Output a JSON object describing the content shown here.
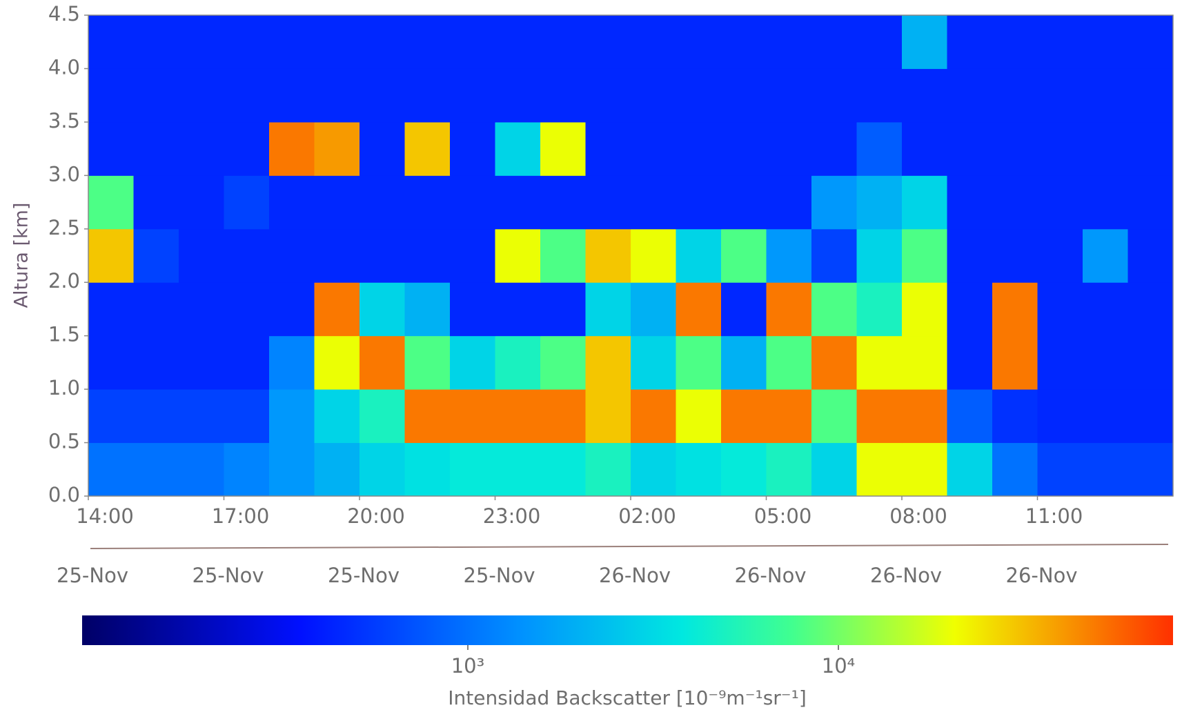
{
  "chart_data": {
    "type": "heatmap",
    "ylabel": "Altura [km]",
    "ylim": [
      0,
      4.5
    ],
    "yticks": [
      {
        "value": 0,
        "label": "0.0"
      },
      0.5,
      {
        "value": 1,
        "label": "1.0"
      },
      1.5,
      {
        "value": 2,
        "label": "2.0"
      },
      2.5,
      {
        "value": 3,
        "label": "3.0"
      },
      3.5,
      {
        "value": 4,
        "label": "4.0"
      },
      4.5
    ],
    "categories": [
      "14:00",
      null,
      null,
      "17:00",
      null,
      null,
      "20:00",
      null,
      null,
      "23:00",
      null,
      null,
      "02:00",
      null,
      null,
      "05:00",
      null,
      null,
      "08:00",
      null,
      null,
      "11:00",
      null,
      null
    ],
    "date_labels": [
      "25-Nov",
      null,
      null,
      "25-Nov",
      null,
      null,
      "25-Nov",
      null,
      null,
      "25-Nov",
      null,
      null,
      "26-Nov",
      null,
      null,
      "26-Nov",
      null,
      null,
      "26-Nov",
      null,
      null,
      "26-Nov",
      null,
      null
    ],
    "z": [
      [
        1000,
        1000,
        1000,
        1200,
        1500,
        2000,
        3000,
        3500,
        4000,
        4000,
        4000,
        5000,
        3000,
        3500,
        4000,
        5000,
        3000,
        20000,
        20000,
        3000,
        1000,
        600,
        600,
        600
      ],
      [
        600,
        600,
        600,
        600,
        1500,
        3000,
        5000,
        50000,
        50000,
        50000,
        50000,
        30000,
        50000,
        20000,
        50000,
        50000,
        8000,
        50000,
        50000,
        800,
        500,
        450,
        450,
        450
      ],
      [
        450,
        450,
        450,
        450,
        1200,
        20000,
        50000,
        8000,
        3000,
        5000,
        8000,
        30000,
        3000,
        8000,
        2000,
        8000,
        50000,
        20000,
        20000,
        450,
        50000,
        450,
        450,
        450
      ],
      [
        450,
        450,
        450,
        450,
        450,
        50000,
        3000,
        2000,
        450,
        450,
        450,
        3000,
        2000,
        50000,
        450,
        50000,
        8000,
        5000,
        20000,
        450,
        50000,
        450,
        450,
        450
      ],
      [
        30000,
        600,
        450,
        450,
        450,
        450,
        450,
        450,
        450,
        20000,
        8000,
        30000,
        20000,
        3000,
        8000,
        1500,
        600,
        3000,
        8000,
        450,
        450,
        450,
        1500,
        450
      ],
      [
        8000,
        450,
        450,
        600,
        450,
        450,
        450,
        450,
        450,
        450,
        450,
        450,
        450,
        450,
        450,
        450,
        1500,
        2000,
        3000,
        450,
        450,
        450,
        450,
        450
      ],
      [
        450,
        450,
        450,
        450,
        50000,
        40000,
        450,
        30000,
        450,
        3000,
        20000,
        450,
        450,
        450,
        450,
        450,
        450,
        800,
        450,
        450,
        450,
        450,
        450,
        450
      ],
      [
        450,
        450,
        450,
        450,
        450,
        450,
        450,
        450,
        450,
        450,
        450,
        450,
        450,
        450,
        450,
        450,
        450,
        450,
        450,
        450,
        450,
        450,
        450,
        450
      ],
      [
        450,
        450,
        450,
        450,
        450,
        450,
        450,
        450,
        450,
        450,
        450,
        450,
        450,
        450,
        450,
        450,
        450,
        450,
        2000,
        450,
        450,
        450,
        450,
        450
      ]
    ],
    "colorbar_label": "Intensidad Backscatter [10⁻⁹m⁻¹sr⁻¹]",
    "colorbar_scale": "log",
    "zlim": [
      91,
      80000
    ],
    "zticks": [
      {
        "value": 1000,
        "label": "10³"
      },
      {
        "value": 10000,
        "label": "10⁴"
      }
    ]
  }
}
